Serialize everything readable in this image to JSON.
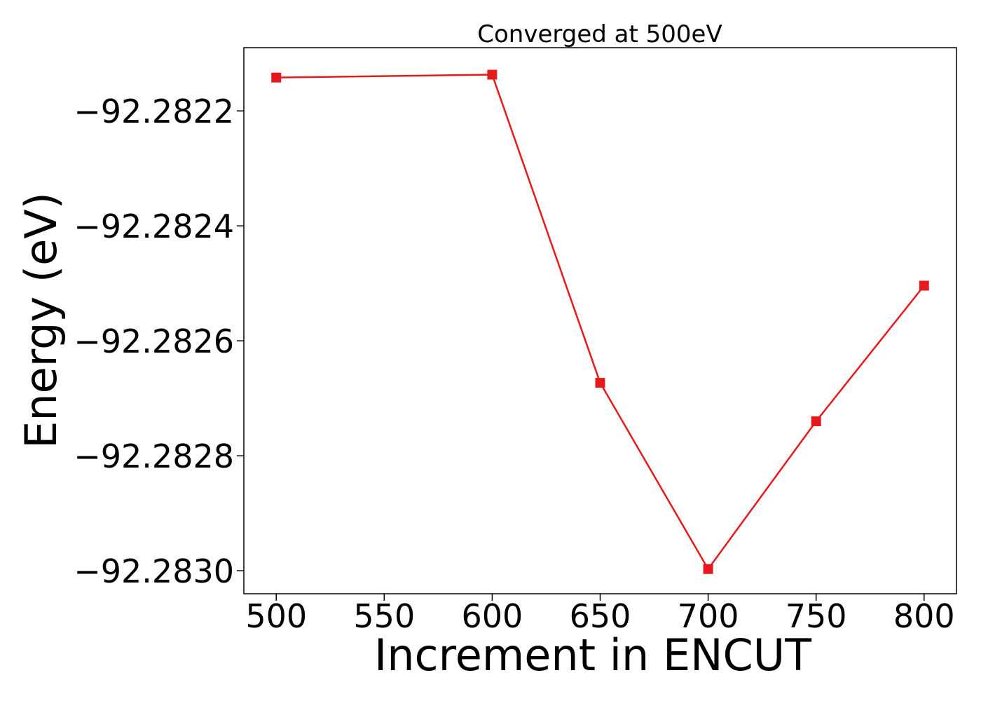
{
  "chart_data": {
    "type": "line",
    "title": "Converged at 500eV",
    "xlabel": "Increment in ENCUT",
    "ylabel": "Energy (eV)",
    "xlim": [
      485,
      815
    ],
    "ylim": [
      -92.28304,
      -92.28209
    ],
    "x_ticks": [
      500,
      550,
      600,
      650,
      700,
      750,
      800
    ],
    "x_tick_labels": [
      "500",
      "550",
      "600",
      "650",
      "700",
      "750",
      "800"
    ],
    "y_ticks": [
      -92.2822,
      -92.2824,
      -92.2826,
      -92.2828,
      -92.283
    ],
    "y_tick_labels": [
      "−92.2822",
      "−92.2824",
      "−92.2826",
      "−92.2828",
      "−92.2830"
    ],
    "grid": false,
    "series": [
      {
        "color": "#e41a1c",
        "marker": "square",
        "x": [
          500,
          600,
          650,
          700,
          750,
          800
        ],
        "y": [
          -92.282142,
          -92.282137,
          -92.282673,
          -92.282997,
          -92.28274,
          -92.282504
        ]
      }
    ]
  }
}
